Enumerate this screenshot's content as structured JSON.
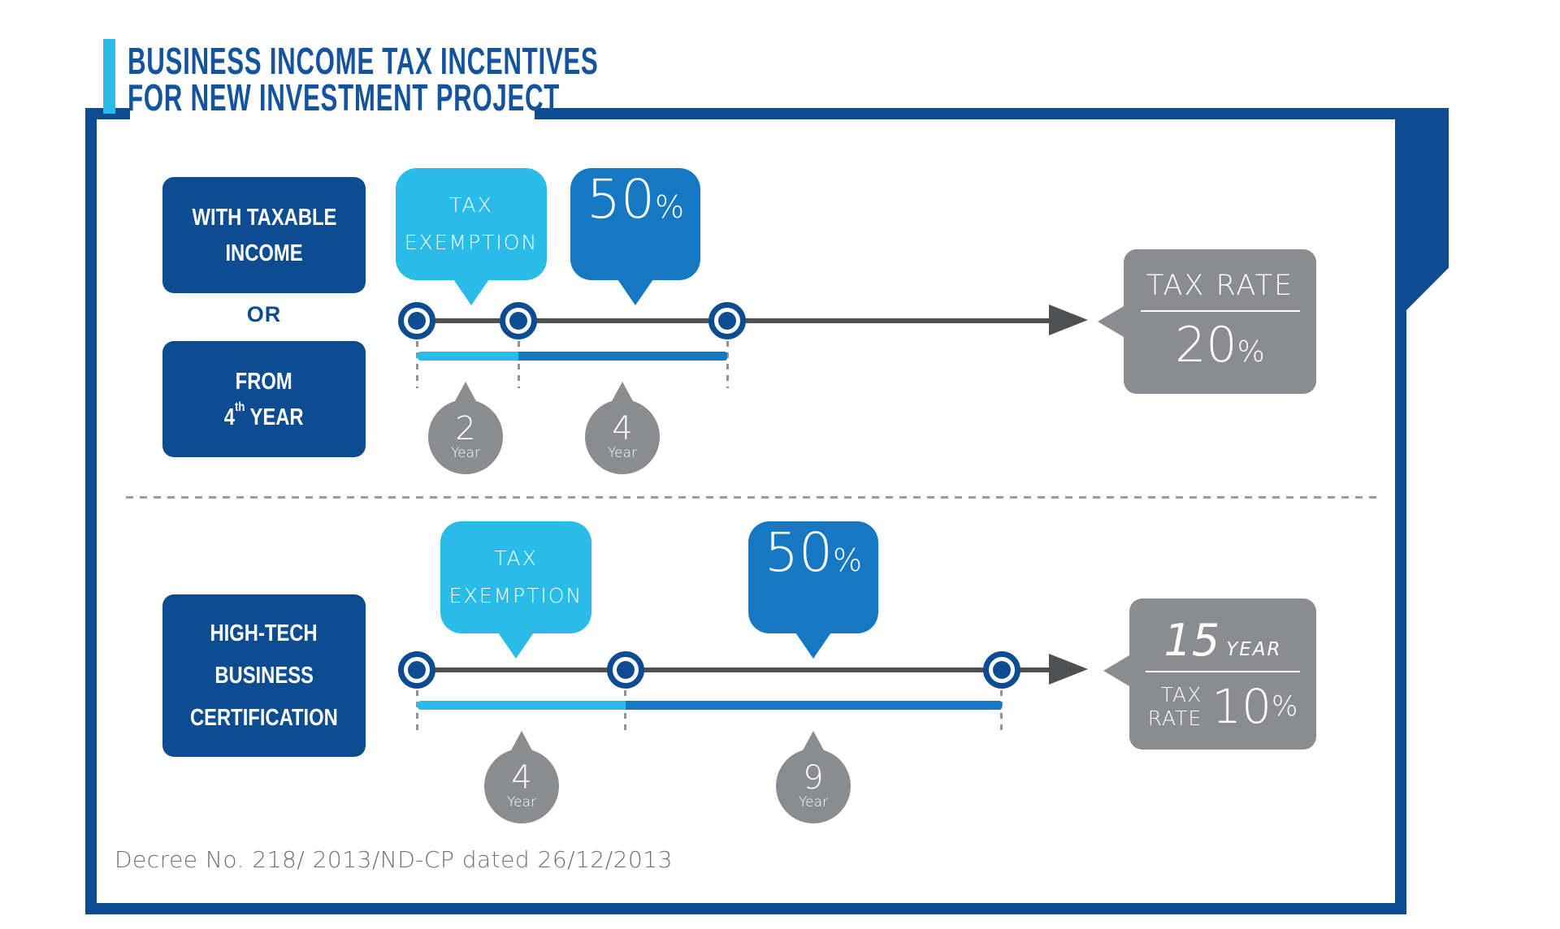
{
  "colors": {
    "dark_blue": "#0e4c91",
    "title_blue": "#14549e",
    "light_blue": "#29bce9",
    "mid_blue": "#1678c2",
    "bubble_gray": "#8a8c8f",
    "line_gray": "#4f5052",
    "dash_gray": "#919396",
    "divider_gray": "#9b9da0",
    "text_gray": "#6f7073"
  },
  "header": {
    "title_line1": "BUSINESS INCOME TAX INCENTIVES",
    "title_line2": "FOR NEW INVESTMENT PROJECT"
  },
  "scenario1": {
    "condition1_line1": "WITH TAXABLE",
    "condition1_line2": "INCOME",
    "joiner": "OR",
    "condition2_line1": "FROM",
    "condition2_num": "4",
    "condition2_sup": "th",
    "condition2_rest": " YEAR",
    "exemption_line1": "TAX",
    "exemption_line2": "EXEMPTION",
    "reduction_value": "50",
    "reduction_unit": "%",
    "milestones": [
      {
        "value": "2",
        "unit": "Year"
      },
      {
        "value": "4",
        "unit": "Year"
      }
    ],
    "result_label": "TAX RATE",
    "result_value": "20",
    "result_unit": "%"
  },
  "scenario2": {
    "condition_line1": "HIGH-TECH",
    "condition_line2": "BUSINESS",
    "condition_line3": "CERTIFICATION",
    "exemption_line1": "TAX",
    "exemption_line2": "EXEMPTION",
    "reduction_value": "50",
    "reduction_unit": "%",
    "milestones": [
      {
        "value": "4",
        "unit": "Year"
      },
      {
        "value": "9",
        "unit": "Year"
      }
    ],
    "result_duration_value": "15",
    "result_duration_unit": "YEAR",
    "result_label_line1": "TAX",
    "result_label_line2": "RATE",
    "result_value": "10",
    "result_unit": "%"
  },
  "footer": {
    "source": "Decree No. 218/ 2013/ND-CP dated 26/12/2013"
  }
}
